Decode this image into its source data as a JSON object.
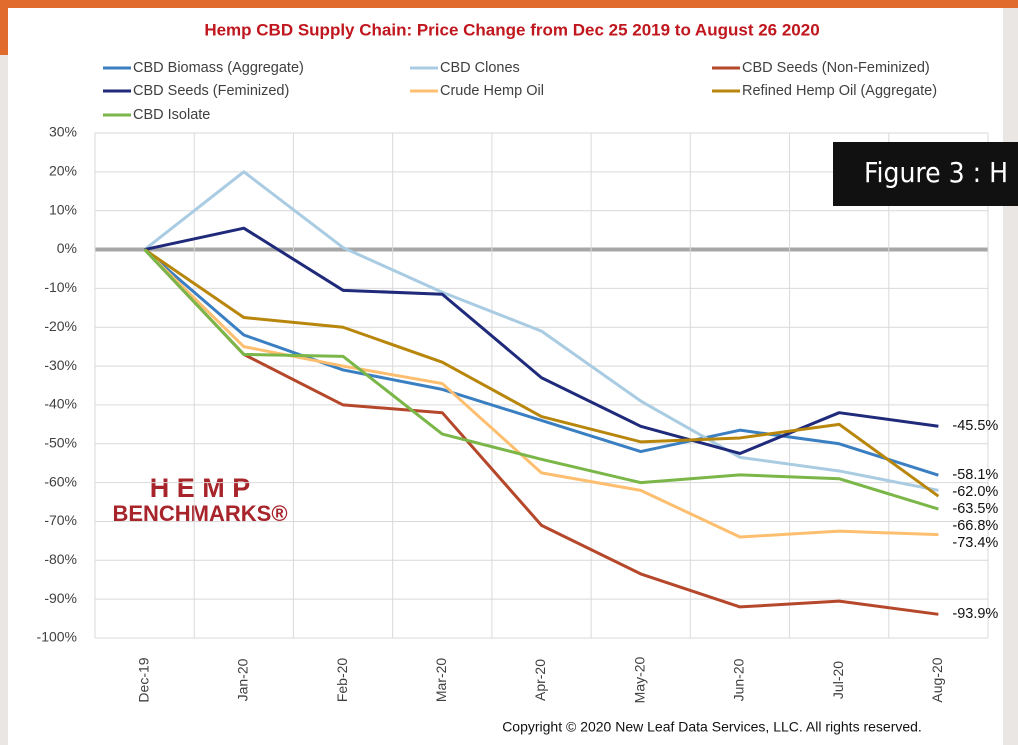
{
  "chart_data": {
    "type": "line",
    "title": "Hemp CBD Supply Chain: Price Change from Dec 25 2019 to August 26 2020",
    "categories": [
      "Dec-19",
      "Jan-20",
      "Feb-20",
      "Mar-20",
      "Apr-20",
      "May-20",
      "Jun-20",
      "Jul-20",
      "Aug-20"
    ],
    "series": [
      {
        "name": "CBD Biomass (Aggregate)",
        "color": "#3a7fc1",
        "values": [
          0,
          -22,
          -31,
          -36,
          -44,
          -52,
          -46.5,
          -50,
          -58.1
        ],
        "value_labels": [
          null,
          null,
          null,
          null,
          null,
          null,
          null,
          null,
          "-58.1%"
        ]
      },
      {
        "name": "CBD Clones",
        "color": "#a9cce3",
        "values": [
          0,
          20,
          0.5,
          -11,
          -21,
          -39,
          -53.5,
          -57,
          -62.0
        ],
        "value_labels": [
          null,
          null,
          null,
          null,
          null,
          null,
          null,
          null,
          "-62.0%"
        ]
      },
      {
        "name": "CBD Seeds (Non-Feminized)",
        "color": "#b5472a",
        "values": [
          0,
          -27,
          -40,
          -42,
          -71,
          -83.5,
          -92,
          -90.5,
          -93.9
        ],
        "value_labels": [
          null,
          null,
          null,
          null,
          null,
          null,
          null,
          null,
          "-93.9%"
        ]
      },
      {
        "name": "CBD Seeds (Feminized)",
        "color": "#1f2a7a",
        "values": [
          0,
          5.5,
          -10.5,
          -11.5,
          -33,
          -45.5,
          -52.5,
          -42,
          -45.5
        ],
        "value_labels": [
          null,
          null,
          null,
          null,
          null,
          null,
          null,
          null,
          "-45.5%"
        ]
      },
      {
        "name": "Crude Hemp Oil",
        "color": "#fdbf6f",
        "values": [
          0,
          -25,
          -30,
          -34.5,
          -57.5,
          -62,
          -74,
          -72.5,
          -73.4
        ],
        "value_labels": [
          null,
          null,
          null,
          null,
          null,
          null,
          null,
          null,
          "-73.4%"
        ]
      },
      {
        "name": "Refined Hemp Oil (Aggregate)",
        "color": "#b8860b",
        "values": [
          0,
          -17.5,
          -20,
          -29,
          -43,
          -49.5,
          -48.5,
          -45,
          -63.5
        ],
        "value_labels": [
          null,
          null,
          null,
          null,
          null,
          null,
          null,
          null,
          "-63.5%"
        ]
      },
      {
        "name": "CBD Isolate",
        "color": "#7ab648",
        "values": [
          0,
          -27,
          -27.5,
          -47.5,
          -54,
          -60,
          -58,
          -59,
          -66.8
        ],
        "value_labels": [
          null,
          null,
          null,
          null,
          null,
          null,
          null,
          null,
          "-66.8%"
        ]
      }
    ],
    "ylim": [
      -100,
      30
    ],
    "yticks": [
      {
        "value": 30,
        "label": "30%"
      },
      {
        "value": 20,
        "label": "20%"
      },
      {
        "value": 10,
        "label": "10%"
      },
      {
        "value": 0,
        "label": "0%"
      },
      {
        "value": -10,
        "label": "-10%"
      },
      {
        "value": -20,
        "label": "-20%"
      },
      {
        "value": -30,
        "label": "-30%"
      },
      {
        "value": -40,
        "label": "-40%"
      },
      {
        "value": -50,
        "label": "-50%"
      },
      {
        "value": -60,
        "label": "-60%"
      },
      {
        "value": -70,
        "label": "-70%"
      },
      {
        "value": -80,
        "label": "-80%"
      },
      {
        "value": -90,
        "label": "-90%"
      },
      {
        "value": -100,
        "label": "-100%"
      }
    ],
    "grid": true,
    "legend": "top",
    "logo": {
      "line1": "H E M P",
      "line2": "BENCHMARKS®"
    },
    "copyright": "Copyright © 2020 New Leaf Data Services, LLC. All rights reserved.",
    "banner": "Figure 3 : H"
  }
}
